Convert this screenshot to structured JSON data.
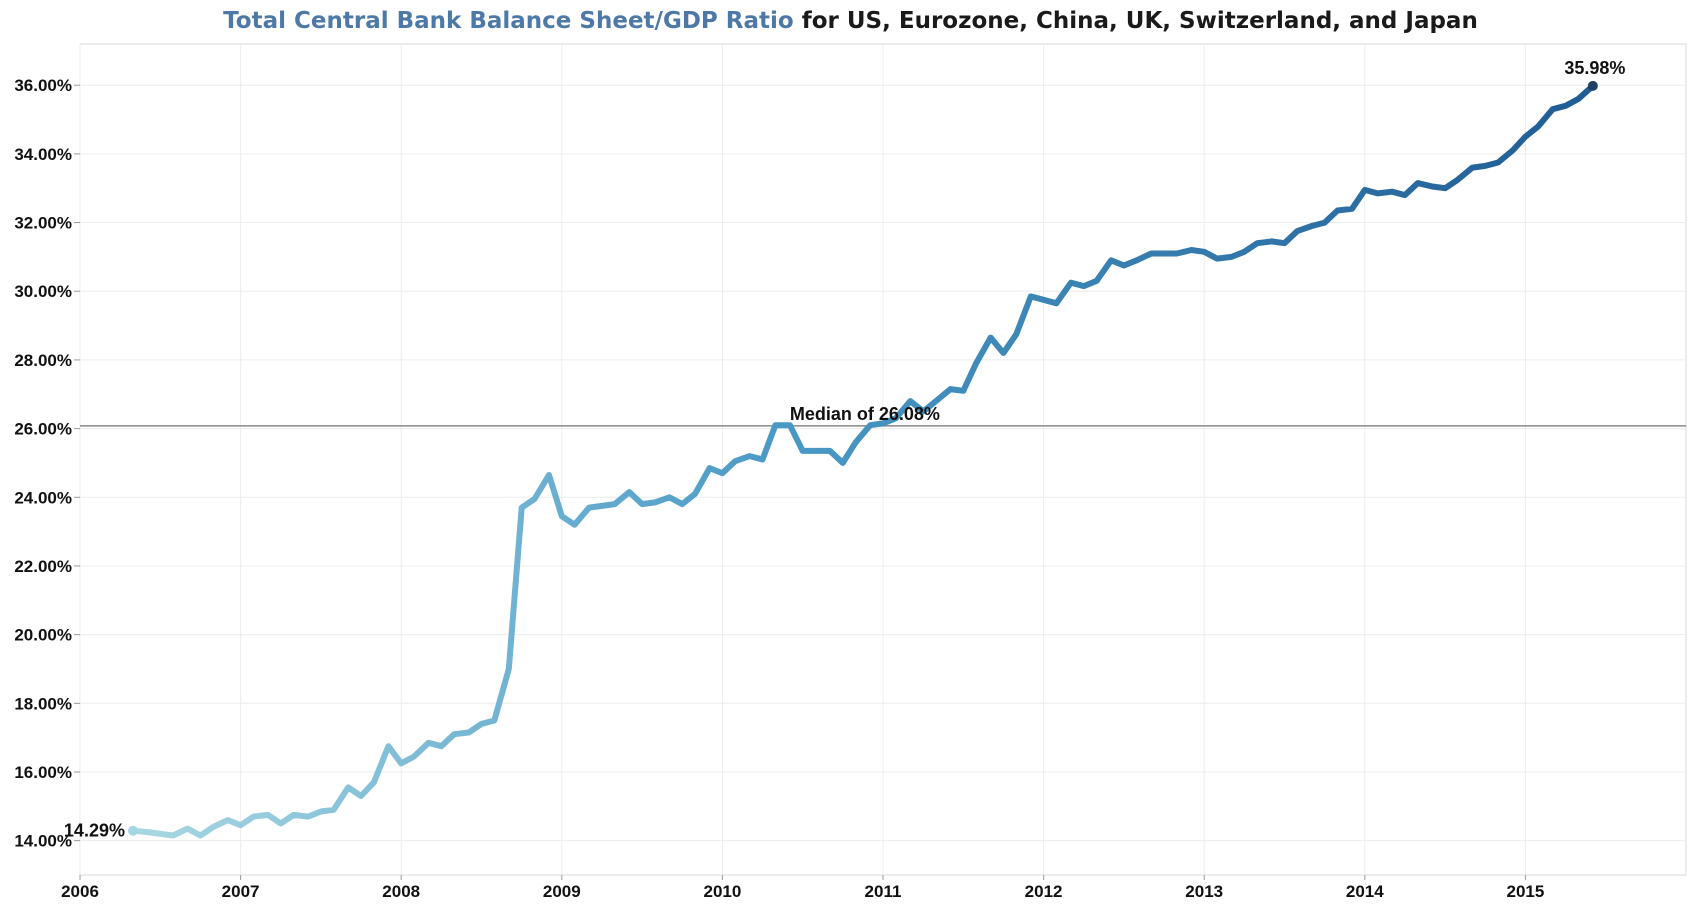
{
  "chart_data": {
    "type": "line",
    "title_part1": "Total Central Bank Balance Sheet/GDP Ratio",
    "title_part2": "for US, Eurozone, China, UK, Switzerland, and Japan",
    "xlabel": "",
    "ylabel": "",
    "x_ticks": [
      "2006",
      "2007",
      "2008",
      "2009",
      "2010",
      "2011",
      "2012",
      "2013",
      "2014",
      "2015"
    ],
    "y_ticks": [
      "14.00%",
      "16.00%",
      "18.00%",
      "20.00%",
      "22.00%",
      "24.00%",
      "26.00%",
      "28.00%",
      "30.00%",
      "32.00%",
      "34.00%",
      "36.00%"
    ],
    "xlim": [
      2006.0,
      2016.0
    ],
    "ylim": [
      13.0,
      37.2
    ],
    "grid": true,
    "legend": "none",
    "colors": {
      "light": "#a6d6e2",
      "mid": "#4a9ac6",
      "dark": "#1e5a93",
      "endpoint": "#1f3f63",
      "median": "#888888"
    },
    "median": {
      "value": 26.08,
      "label": "Median of 26.08%"
    },
    "start_label": "14.29%",
    "end_label": "35.98%",
    "series": [
      {
        "x": [
          2006.33,
          2006.42,
          2006.5,
          2006.58,
          2006.67,
          2006.75,
          2006.83,
          2006.92,
          2007.0,
          2007.08,
          2007.17,
          2007.25,
          2007.33,
          2007.42,
          2007.5,
          2007.58,
          2007.67,
          2007.75,
          2007.83,
          2007.92,
          2008.0,
          2008.08,
          2008.17,
          2008.25,
          2008.33,
          2008.42,
          2008.5,
          2008.58,
          2008.67,
          2008.75,
          2008.83,
          2008.92,
          2009.0,
          2009.08,
          2009.17,
          2009.25,
          2009.33,
          2009.42,
          2009.5,
          2009.58,
          2009.67,
          2009.75,
          2009.83,
          2009.92,
          2010.0,
          2010.08,
          2010.17,
          2010.25,
          2010.33,
          2010.42,
          2010.5,
          2010.58,
          2010.67,
          2010.75,
          2010.83,
          2010.92,
          2011.0,
          2011.08,
          2011.17,
          2011.25,
          2011.33,
          2011.42,
          2011.5,
          2011.58,
          2011.67,
          2011.75,
          2011.83,
          2011.92,
          2012.0,
          2012.08,
          2012.17,
          2012.25,
          2012.33,
          2012.42,
          2012.5,
          2012.58,
          2012.67,
          2012.75,
          2012.83,
          2012.92,
          2013.0,
          2013.08,
          2013.17,
          2013.25,
          2013.33,
          2013.42,
          2013.5,
          2013.58,
          2013.67,
          2013.75,
          2013.83,
          2013.92,
          2014.0,
          2014.08,
          2014.17,
          2014.25,
          2014.33,
          2014.42,
          2014.5,
          2014.58,
          2014.67,
          2014.75,
          2014.83,
          2014.92,
          2015.0,
          2015.08,
          2015.17,
          2015.25,
          2015.33,
          2015.42
        ],
        "y": [
          14.29,
          14.25,
          14.2,
          14.15,
          14.35,
          14.15,
          14.4,
          14.6,
          14.45,
          14.7,
          14.75,
          14.5,
          14.75,
          14.7,
          14.85,
          14.9,
          15.55,
          15.3,
          15.7,
          16.75,
          16.25,
          16.45,
          16.85,
          16.75,
          17.1,
          17.15,
          17.4,
          17.5,
          19.0,
          23.7,
          23.95,
          24.65,
          23.45,
          23.2,
          23.7,
          23.75,
          23.8,
          24.15,
          23.8,
          23.85,
          24.0,
          23.8,
          24.1,
          24.85,
          24.7,
          25.05,
          25.2,
          25.1,
          26.1,
          26.1,
          25.35,
          25.35,
          25.35,
          25.0,
          25.6,
          26.1,
          26.15,
          26.3,
          26.8,
          26.5,
          26.8,
          27.15,
          27.1,
          27.9,
          28.65,
          28.2,
          28.75,
          29.85,
          29.75,
          29.65,
          30.25,
          30.15,
          30.3,
          30.9,
          30.75,
          30.9,
          31.1,
          31.1,
          31.1,
          31.2,
          31.15,
          30.95,
          31.0,
          31.15,
          31.4,
          31.45,
          31.4,
          31.75,
          31.9,
          32.0,
          32.35,
          32.4,
          32.95,
          32.85,
          32.9,
          32.8,
          33.15,
          33.05,
          33.0,
          33.25,
          33.6,
          33.65,
          33.75,
          34.1,
          34.5,
          34.8,
          35.3,
          35.4,
          35.6,
          35.98
        ]
      }
    ]
  }
}
